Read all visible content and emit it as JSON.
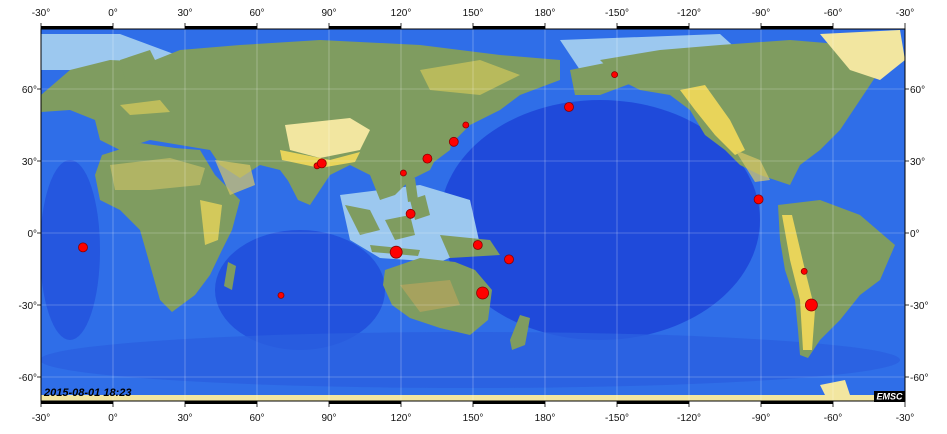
{
  "map": {
    "timestamp": "2015-08-01 18:23",
    "logo": "EMSC",
    "colors": {
      "deep_ocean": "#1b3fd6",
      "mid_ocean": "#2f6ee8",
      "shelf": "#9cc8ef",
      "land_low": "#7f9c60",
      "land_high": "#e8d45a",
      "ice": "#ffffff",
      "marker": "#ff0000",
      "marker_stroke": "#8b0000"
    },
    "x_ticks_top": [
      "-30°",
      "0°",
      "30°",
      "60°",
      "90°",
      "120°",
      "150°",
      "180°",
      "-150°",
      "-120°",
      "-90°",
      "-60°",
      "-30°"
    ],
    "x_ticks_bottom": [
      "-30°",
      "0°",
      "30°",
      "60°",
      "90°",
      "120°",
      "150°",
      "180°",
      "-150°",
      "-120°",
      "-90°",
      "-60°",
      "-30°"
    ],
    "y_ticks_left": [
      "60°",
      "30°",
      "0°",
      "-30°",
      "-60°"
    ],
    "y_ticks_right": [
      "60°",
      "30°",
      "0°",
      "-30°",
      "-60°"
    ]
  },
  "events": [
    {
      "lon": -12.5,
      "lat": -6,
      "mag": "medium"
    },
    {
      "lon": 70,
      "lat": -26,
      "mag": "small"
    },
    {
      "lon": 85,
      "lat": 28,
      "mag": "small"
    },
    {
      "lon": 87,
      "lat": 29,
      "mag": "medium"
    },
    {
      "lon": 121,
      "lat": 25,
      "mag": "small"
    },
    {
      "lon": 131,
      "lat": 31,
      "mag": "medium"
    },
    {
      "lon": 142,
      "lat": 38,
      "mag": "medium"
    },
    {
      "lon": 147,
      "lat": 45,
      "mag": "small"
    },
    {
      "lon": 124,
      "lat": 8,
      "mag": "medium"
    },
    {
      "lon": 118,
      "lat": -8,
      "mag": "large"
    },
    {
      "lon": 152,
      "lat": -5,
      "mag": "medium"
    },
    {
      "lon": 165,
      "lat": -11,
      "mag": "medium"
    },
    {
      "lon": 154,
      "lat": -25,
      "mag": "large"
    },
    {
      "lon": -170,
      "lat": 52.5,
      "mag": "medium"
    },
    {
      "lon": -151,
      "lat": 66,
      "mag": "small"
    },
    {
      "lon": -91,
      "lat": 14,
      "mag": "medium"
    },
    {
      "lon": -72,
      "lat": -16,
      "mag": "small"
    },
    {
      "lon": -69,
      "lat": -30,
      "mag": "large"
    }
  ]
}
